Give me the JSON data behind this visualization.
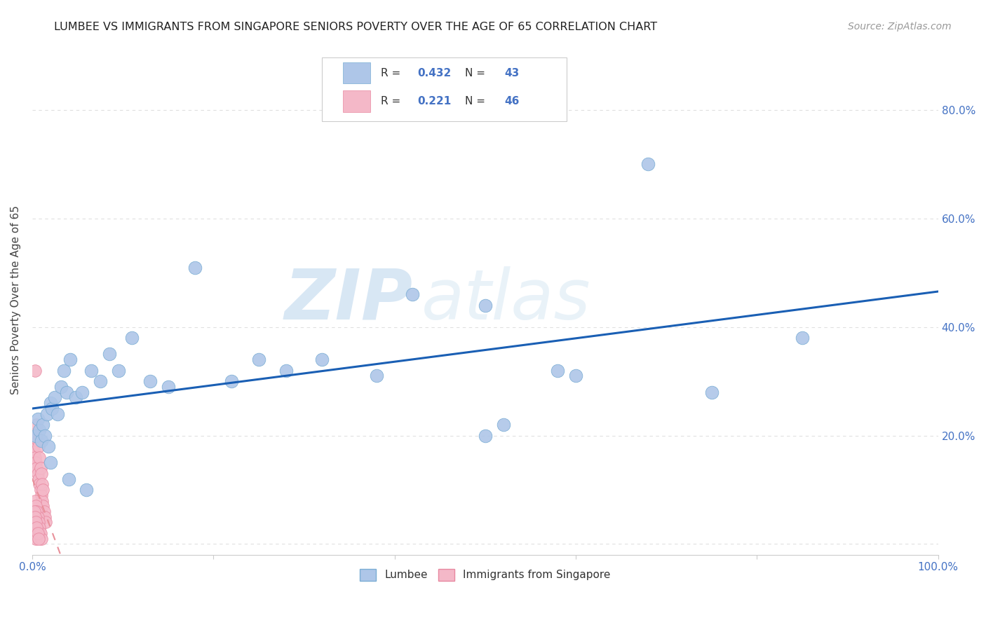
{
  "title": "LUMBEE VS IMMIGRANTS FROM SINGAPORE SENIORS POVERTY OVER THE AGE OF 65 CORRELATION CHART",
  "source": "Source: ZipAtlas.com",
  "ylabel": "Seniors Poverty Over the Age of 65",
  "xlim": [
    0,
    1.0
  ],
  "ylim": [
    -0.02,
    0.92
  ],
  "xticks": [
    0.0,
    0.2,
    0.4,
    0.6,
    0.8,
    1.0
  ],
  "xticklabels": [
    "0.0%",
    "",
    "",
    "",
    "",
    "100.0%"
  ],
  "yticks": [
    0.0,
    0.2,
    0.4,
    0.6,
    0.8
  ],
  "yticklabels": [
    "",
    "20.0%",
    "40.0%",
    "60.0%",
    "80.0%"
  ],
  "background_color": "#ffffff",
  "grid_color": "#e0e0e0",
  "lumbee_color": "#aec6e8",
  "lumbee_edge_color": "#7aadd4",
  "singapore_color": "#f4b8c8",
  "singapore_edge_color": "#e888a0",
  "lumbee_R": "0.432",
  "lumbee_N": "43",
  "singapore_R": "0.221",
  "singapore_N": "46",
  "tick_color": "#4472c4",
  "lumbee_line_color": "#1a5fb4",
  "singapore_line_color": "#e8909a",
  "lumbee_x": [
    0.004,
    0.006,
    0.008,
    0.01,
    0.012,
    0.014,
    0.016,
    0.018,
    0.02,
    0.022,
    0.025,
    0.028,
    0.032,
    0.035,
    0.038,
    0.042,
    0.048,
    0.055,
    0.065,
    0.075,
    0.085,
    0.095,
    0.11,
    0.13,
    0.15,
    0.18,
    0.22,
    0.25,
    0.28,
    0.32,
    0.38,
    0.42,
    0.5,
    0.58,
    0.85,
    0.5,
    0.52,
    0.6,
    0.68,
    0.75,
    0.02,
    0.04,
    0.06
  ],
  "lumbee_y": [
    0.2,
    0.23,
    0.21,
    0.19,
    0.22,
    0.2,
    0.24,
    0.18,
    0.26,
    0.25,
    0.27,
    0.24,
    0.29,
    0.32,
    0.28,
    0.34,
    0.27,
    0.28,
    0.32,
    0.3,
    0.35,
    0.32,
    0.38,
    0.3,
    0.29,
    0.51,
    0.3,
    0.34,
    0.32,
    0.34,
    0.31,
    0.46,
    0.44,
    0.32,
    0.38,
    0.2,
    0.22,
    0.31,
    0.7,
    0.28,
    0.15,
    0.12,
    0.1
  ],
  "singapore_x": [
    0.001,
    0.002,
    0.003,
    0.004,
    0.005,
    0.006,
    0.007,
    0.008,
    0.009,
    0.01,
    0.011,
    0.012,
    0.013,
    0.014,
    0.015,
    0.003,
    0.004,
    0.005,
    0.006,
    0.007,
    0.008,
    0.009,
    0.01,
    0.011,
    0.012,
    0.002,
    0.003,
    0.004,
    0.005,
    0.006,
    0.007,
    0.008,
    0.003,
    0.004,
    0.005,
    0.006,
    0.007,
    0.008,
    0.009,
    0.01,
    0.002,
    0.003,
    0.004,
    0.005,
    0.006,
    0.007
  ],
  "singapore_y": [
    0.18,
    0.17,
    0.16,
    0.15,
    0.14,
    0.13,
    0.12,
    0.11,
    0.1,
    0.09,
    0.08,
    0.07,
    0.06,
    0.05,
    0.04,
    0.32,
    0.2,
    0.22,
    0.19,
    0.18,
    0.16,
    0.14,
    0.13,
    0.11,
    0.1,
    0.03,
    0.02,
    0.01,
    0.05,
    0.04,
    0.03,
    0.02,
    0.08,
    0.07,
    0.06,
    0.05,
    0.04,
    0.03,
    0.02,
    0.01,
    0.06,
    0.05,
    0.04,
    0.03,
    0.02,
    0.01
  ],
  "watermark_zip": "ZIP",
  "watermark_atlas": "atlas",
  "watermark_color": "#c8ddf0",
  "title_fontsize": 11.5,
  "source_fontsize": 10,
  "axis_fontsize": 11
}
